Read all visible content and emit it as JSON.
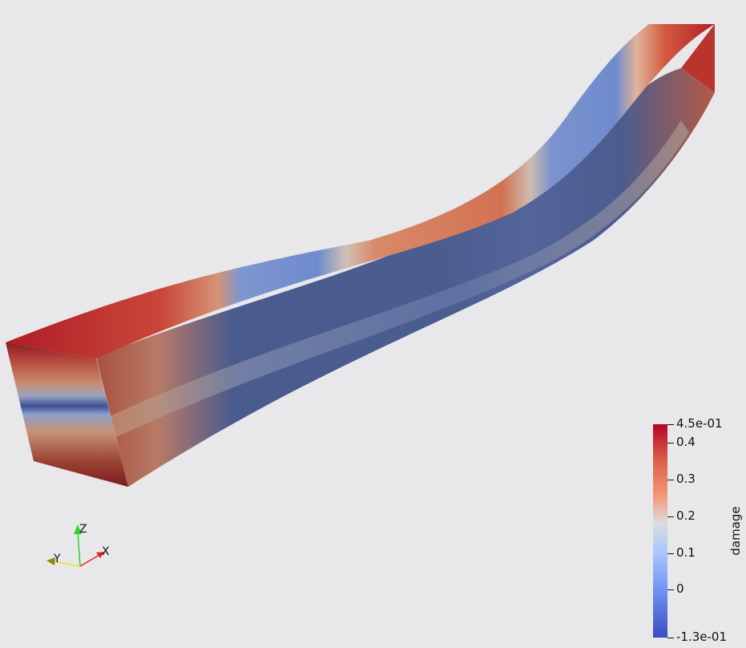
{
  "scalar_bar": {
    "title": "damage",
    "range": [
      -0.13,
      0.45
    ],
    "max_label": "4.5e-01",
    "min_label": "-1.3e-01",
    "ticks": [
      {
        "value": 0.4,
        "label": "0.4"
      },
      {
        "value": 0.3,
        "label": "0.3"
      },
      {
        "value": 0.2,
        "label": "0.2"
      },
      {
        "value": 0.1,
        "label": "0.1"
      },
      {
        "value": 0,
        "label": "0"
      }
    ],
    "colors": {
      "high": "#b40426",
      "mid": "#dcdddd",
      "low": "#3b4cc0"
    }
  },
  "orientation_axes": {
    "x": {
      "label": "X",
      "color": "#e0251b"
    },
    "y": {
      "label": "Y",
      "color": "#e6e62a"
    },
    "z": {
      "label": "Z",
      "color": "#2ad42a"
    }
  },
  "background_color": "#e8e8ea"
}
